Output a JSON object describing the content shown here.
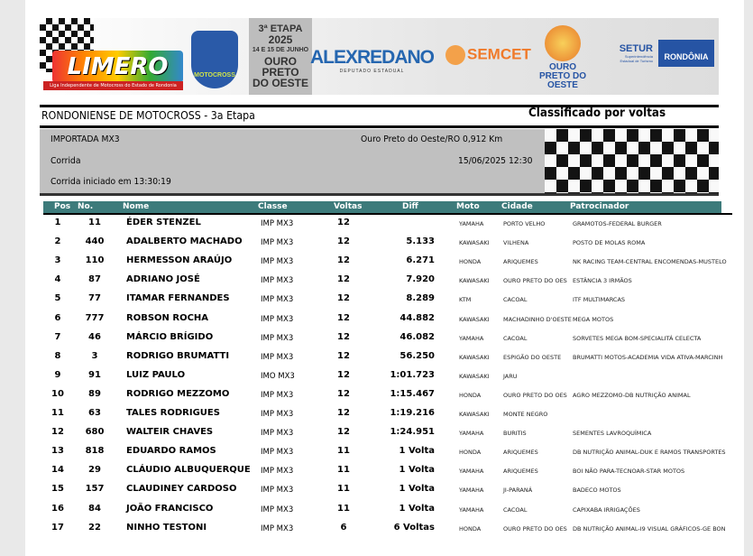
{
  "banner": {
    "league": "LIMERO",
    "league_sub": "Liga Independente de Motocross do Estado de Rondonia",
    "badge": "MOTOCROSS 2025",
    "etapa_lines": [
      "3ª ETAPA",
      "2025",
      "14 E 15 DE JUNHO",
      "OURO PRETO",
      "DO OESTE"
    ],
    "sponsor1": "ALEXREDANO",
    "sponsor1_sub": "DEPUTADO ESTADUAL",
    "sponsor2": "SEMCET",
    "sponsor3": "OURO PRETO DO OESTE",
    "sponsor4": "SETUR",
    "sponsor4_sub": "Superintendência Estadual de Turismo",
    "sponsor5": "RONDÔNIA"
  },
  "header": {
    "title": "RONDONIENSE DE MOTOCROSS - 3a Etapa",
    "classification": "Classificado por voltas"
  },
  "info": {
    "category": "IMPORTADA MX3",
    "location": "Ouro Preto do Oeste/RO 0,912 Km",
    "session": "Corrida",
    "datetime": "15/06/2025 12:30",
    "started": "Corrida iniciado em 13:30:19"
  },
  "colors": {
    "table_header": "#3d7b7b",
    "info_bg": "#c0c0c0"
  },
  "columns": [
    "Pos",
    "No.",
    "Nome",
    "Classe",
    "Voltas",
    "Diff",
    "Moto",
    "Cidade",
    "Patrocinador"
  ],
  "rows": [
    [
      "1",
      "11",
      "ÉDER STENZEL",
      "IMP MX3",
      "12",
      "",
      "YAMAHA",
      "PORTO VELHO",
      "GRAMOTOS-FEDERAL BURGER"
    ],
    [
      "2",
      "440",
      "ADALBERTO MACHADO",
      "IMP MX3",
      "12",
      "5.133",
      "KAWASAKI",
      "VILHENA",
      "POSTO DE MOLAS ROMA"
    ],
    [
      "3",
      "110",
      "HERMESSON ARAÚJO",
      "IMP MX3",
      "12",
      "6.271",
      "HONDA",
      "ARIQUEMES",
      "NK RACING TEAM-CENTRAL ENCOMENDAS-MUSTELO"
    ],
    [
      "4",
      "87",
      "ADRIANO JOSÉ",
      "IMP MX3",
      "12",
      "7.920",
      "KAWASAKI",
      "OURO PRETO DO OES",
      "ESTÂNCIA 3 IRMÃOS"
    ],
    [
      "5",
      "77",
      "ITAMAR FERNANDES",
      "IMP MX3",
      "12",
      "8.289",
      "KTM",
      "CACOAL",
      "ITF MULTIMARCAS"
    ],
    [
      "6",
      "777",
      "ROBSON ROCHA",
      "IMP MX3",
      "12",
      "44.882",
      "KAWASAKI",
      "MACHADINHO D'OESTE",
      "MEGA MOTOS"
    ],
    [
      "7",
      "46",
      "MÁRCIO BRÍGIDO",
      "IMP MX3",
      "12",
      "46.082",
      "YAMAHA",
      "CACOAL",
      "SORVETES MEGA BOM-SPECIALITÁ CELECTA"
    ],
    [
      "8",
      "3",
      "RODRIGO BRUMATTI",
      "IMP MX3",
      "12",
      "56.250",
      "KAWASAKI",
      "ESPIGÃO DO OESTE",
      "BRUMATTI MOTOS-ACADEMIA VIDA ATIVA-MARCINH"
    ],
    [
      "9",
      "91",
      "LUIZ PAULO",
      "IMO MX3",
      "12",
      "1:01.723",
      "KAWASAKI",
      "JARU",
      ""
    ],
    [
      "10",
      "89",
      "RODRIGO MEZZOMO",
      "IMP MX3",
      "12",
      "1:15.467",
      "HONDA",
      "OURO PRETO DO OES",
      "AGRO MEZZOMO-DB NUTRIÇÃO ANIMAL"
    ],
    [
      "11",
      "63",
      "TALES RODRIGUES",
      "IMP MX3",
      "12",
      "1:19.216",
      "KAWASAKI",
      "MONTE NEGRO",
      ""
    ],
    [
      "12",
      "680",
      "WALTEIR CHAVES",
      "IMP MX3",
      "12",
      "1:24.951",
      "YAMAHA",
      "BURITIS",
      "SEMENTES LAVROQUÍMICA"
    ],
    [
      "13",
      "818",
      "EDUARDO RAMOS",
      "IMP MX3",
      "11",
      "1 Volta",
      "HONDA",
      "ARIQUEMES",
      "DB NUTRIÇÃO ANIMAL-DUK E RAMOS TRANSPORTES"
    ],
    [
      "14",
      "29",
      "CLÁUDIO ALBUQUERQUE",
      "IMP MX3",
      "11",
      "1 Volta",
      "YAMAHA",
      "ARIQUEMES",
      "BOI NÃO PARA-TECNOAR-STAR MOTOS"
    ],
    [
      "15",
      "157",
      "CLAUDINEY CARDOSO",
      "IMP MX3",
      "11",
      "1 Volta",
      "YAMAHA",
      "JI-PARANÁ",
      "BADECO MOTOS"
    ],
    [
      "16",
      "84",
      "JOÃO FRANCISCO",
      "IMP MX3",
      "11",
      "1 Volta",
      "YAMAHA",
      "CACOAL",
      "CAPIXABA IRRIGAÇÕES"
    ],
    [
      "17",
      "22",
      "NINHO TESTONI",
      "IMP MX3",
      "6",
      "6 Voltas",
      "HONDA",
      "OURO PRETO DO OES",
      "DB NUTRIÇÃO ANIMAL-I9 VISUAL GRÁFICOS-GE BON"
    ]
  ]
}
